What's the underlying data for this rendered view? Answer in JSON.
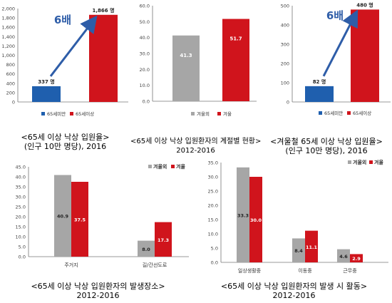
{
  "colors": {
    "blue": "#1f5fae",
    "red": "#d0141c",
    "gray": "#a6a6a6",
    "arrow": "#2e5da8",
    "axis": "#777777"
  },
  "chart_data": [
    {
      "type": "bar",
      "categories": [
        "65세미만",
        "65세이상"
      ],
      "values": [
        337,
        1866
      ],
      "data_labels": [
        "337 명",
        "1,866 명"
      ],
      "legend": [
        "65세미만",
        "65세이상"
      ],
      "legend_placement": "bottom",
      "annotation": "6배",
      "ylim": [
        0,
        2000
      ],
      "yticks": [
        "0",
        "200",
        "400",
        "600",
        "800",
        "1,000",
        "1,200",
        "1,400",
        "1,600",
        "1,800",
        "2,000"
      ],
      "grid": false,
      "caption": [
        "<65세 이상 낙상 입원율>",
        "(인구 10만 명당), 2016"
      ]
    },
    {
      "type": "bar",
      "categories": [
        "겨울외",
        "겨울"
      ],
      "values": [
        41.3,
        51.7
      ],
      "data_labels": [
        "41.3",
        "51.7"
      ],
      "legend": [
        "겨울외",
        "겨울"
      ],
      "legend_placement": "bottom",
      "ylim": [
        0,
        60
      ],
      "yticks": [
        "0.0",
        "10.0",
        "20.0",
        "30.0",
        "40.0",
        "50.0",
        "60.0"
      ],
      "grid": false,
      "caption": [
        "<65세 이상 낙상 입원환자의 계절별 현황>",
        "2012-2016"
      ]
    },
    {
      "type": "bar",
      "categories": [
        "65세미만",
        "65세이상"
      ],
      "values": [
        82,
        480
      ],
      "data_labels": [
        "82 명",
        "480 명"
      ],
      "legend": [
        "65세미만",
        "65세이상"
      ],
      "legend_placement": "bottom",
      "annotation": "6배",
      "ylim": [
        0,
        500
      ],
      "yticks": [
        "0",
        "100",
        "200",
        "300",
        "400",
        "500"
      ],
      "grid": false,
      "caption": [
        "<겨울철 65세 이상 낙상 입원율>",
        "(인구 10만 명당), 2016"
      ]
    },
    {
      "type": "bar",
      "categories": [
        "주거지",
        "길/간선도로"
      ],
      "series": [
        {
          "name": "겨울외",
          "values": [
            40.9,
            8.0
          ]
        },
        {
          "name": "겨울",
          "values": [
            37.5,
            17.3
          ]
        }
      ],
      "legend_placement": "top-right",
      "ylim": [
        0,
        45
      ],
      "yticks": [
        "0.0",
        "5.0",
        "10.0",
        "15.0",
        "20.0",
        "25.0",
        "30.0",
        "35.0",
        "40.0",
        "45.0"
      ],
      "grid": false,
      "caption": [
        "<65세 이상 낙상 입원환자의 발생장소>",
        "2012-2016"
      ]
    },
    {
      "type": "bar",
      "categories": [
        "일상생활중",
        "이동중",
        "근무중"
      ],
      "series": [
        {
          "name": "겨울외",
          "values": [
            33.3,
            8.4,
            4.6
          ]
        },
        {
          "name": "겨울",
          "values": [
            30.0,
            11.1,
            2.9
          ]
        }
      ],
      "legend_placement": "top-right",
      "ylim": [
        0,
        35
      ],
      "yticks": [
        "0.0",
        "5.0",
        "10.0",
        "15.0",
        "20.0",
        "25.0",
        "30.0",
        "35.0"
      ],
      "grid": false,
      "caption": [
        "<65세 이상 낙상 입원환자의 발생 시 활동>",
        "2012-2016"
      ]
    }
  ]
}
